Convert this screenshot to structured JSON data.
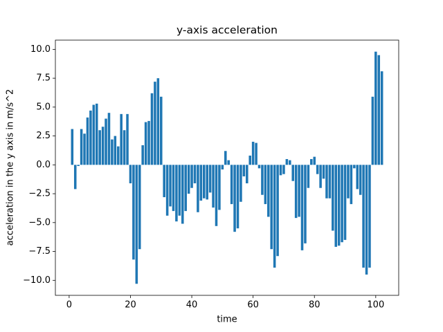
{
  "chart_data": {
    "type": "bar",
    "title": "y-axis acceleration",
    "xlabel": "time",
    "ylabel": "acceleration in the y axis in m/s^2",
    "color": "#1f77b4",
    "x": [
      1,
      2,
      3,
      4,
      5,
      6,
      7,
      8,
      9,
      10,
      11,
      12,
      13,
      14,
      15,
      16,
      17,
      18,
      19,
      20,
      21,
      22,
      23,
      24,
      25,
      26,
      27,
      28,
      29,
      30,
      31,
      32,
      33,
      34,
      35,
      36,
      37,
      38,
      39,
      40,
      41,
      42,
      43,
      44,
      45,
      46,
      47,
      48,
      49,
      50,
      51,
      52,
      53,
      54,
      55,
      56,
      57,
      58,
      59,
      60,
      61,
      62,
      63,
      64,
      65,
      66,
      67,
      68,
      69,
      70,
      71,
      72,
      73,
      74,
      75,
      76,
      77,
      78,
      79,
      80,
      81,
      82,
      83,
      84,
      85,
      86,
      87,
      88,
      89,
      90,
      91,
      92,
      93,
      94,
      95,
      96,
      97,
      98,
      99,
      100,
      101,
      102
    ],
    "values": [
      3.1,
      -2.1,
      -0.1,
      3.1,
      2.7,
      4.1,
      4.7,
      5.2,
      5.3,
      3.0,
      3.3,
      4.0,
      4.5,
      2.2,
      2.5,
      1.6,
      4.4,
      3.0,
      4.4,
      -1.6,
      -8.2,
      -10.3,
      -7.3,
      1.7,
      3.7,
      3.8,
      6.2,
      7.2,
      7.5,
      5.9,
      -2.8,
      -4.4,
      -3.6,
      -4.0,
      -4.9,
      -4.4,
      -5.1,
      -4.0,
      -2.5,
      -2.0,
      -1.6,
      -4.1,
      -3.1,
      -2.9,
      -3.0,
      -2.4,
      -3.7,
      -5.3,
      -3.9,
      -0.4,
      1.2,
      0.4,
      -3.4,
      -5.8,
      -5.5,
      -3.2,
      -1.0,
      -1.6,
      0.8,
      2.0,
      1.9,
      -0.3,
      -2.6,
      -3.4,
      -4.5,
      -7.3,
      -8.9,
      -7.9,
      -0.9,
      -0.8,
      0.5,
      0.4,
      -1.4,
      -4.6,
      -4.5,
      -7.4,
      -6.8,
      -2.0,
      0.5,
      0.7,
      -0.8,
      -2.0,
      -1.2,
      -2.9,
      -2.9,
      -5.7,
      -7.1,
      -7.0,
      -6.7,
      -6.5,
      -2.9,
      -3.4,
      -0.3,
      -2.1,
      -2.6,
      -8.9,
      -9.5,
      -8.9,
      5.9,
      9.8,
      9.5,
      8.1
    ],
    "xlim": [
      -4.49,
      107.49
    ],
    "xticks": [
      0,
      20,
      40,
      60,
      80,
      100
    ],
    "ylim": [
      -11.3,
      10.8
    ],
    "yticks": [
      {
        "value": -10,
        "label": "−10.0"
      },
      {
        "value": -7.5,
        "label": "−7.5"
      },
      {
        "value": -5,
        "label": "−5.0"
      },
      {
        "value": -2.5,
        "label": "−2.5"
      },
      {
        "value": 0,
        "label": "0.0"
      },
      {
        "value": 2.5,
        "label": "2.5"
      },
      {
        "value": 5,
        "label": "5.0"
      },
      {
        "value": 7.5,
        "label": "7.5"
      },
      {
        "value": 10,
        "label": "10.0"
      }
    ]
  }
}
